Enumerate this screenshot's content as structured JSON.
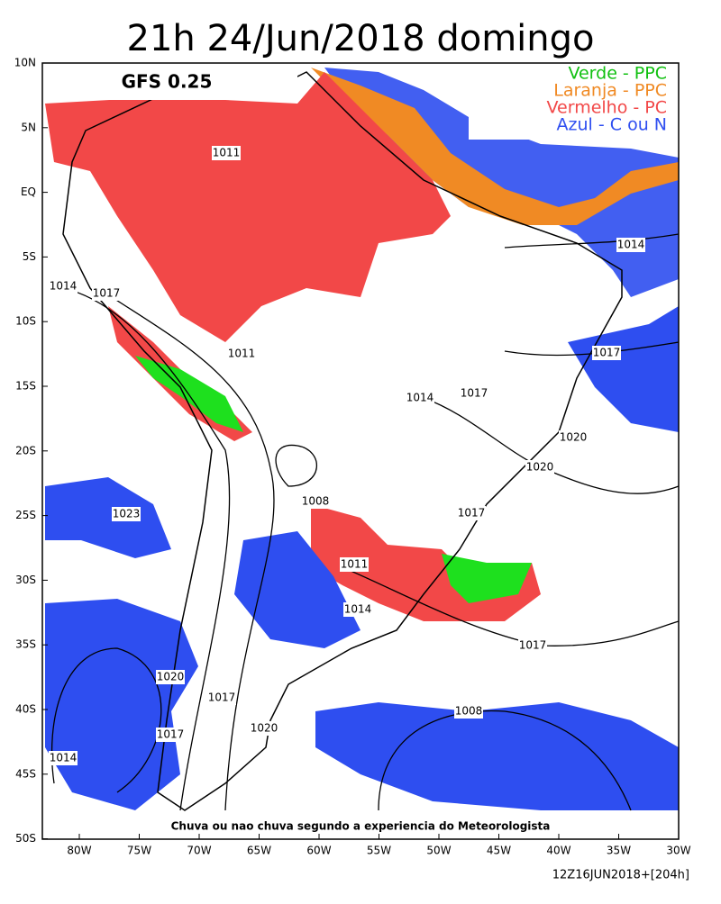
{
  "header": {
    "title": "21h 24/Jun/2018 domingo",
    "model": "GFS 0.25"
  },
  "legend": [
    "Verde - PPC",
    "Laranja - PPC",
    "Vermelho - PC",
    "Azul - C ou N"
  ],
  "map": {
    "lat_labels": [
      "10N",
      "5N",
      "EQ",
      "5S",
      "10S",
      "15S",
      "20S",
      "25S",
      "30S",
      "35S",
      "40S",
      "45S",
      "50S"
    ],
    "lon_labels": [
      "80W",
      "75W",
      "70W",
      "65W",
      "60W",
      "55W",
      "50W",
      "45W",
      "40W",
      "35W",
      "30W"
    ],
    "isobars": [
      "1011",
      "1014",
      "1014",
      "1017",
      "1011",
      "1017",
      "1014",
      "1017",
      "1020",
      "1020",
      "1008",
      "1017",
      "1023",
      "1011",
      "1014",
      "1017",
      "1020",
      "1017",
      "1008",
      "1020",
      "1017",
      "1014"
    ],
    "note": "Chuva ou nao chuva segundo a experiencia do Meteorologista"
  },
  "footer": "12Z16JUN2018+[204h]"
}
